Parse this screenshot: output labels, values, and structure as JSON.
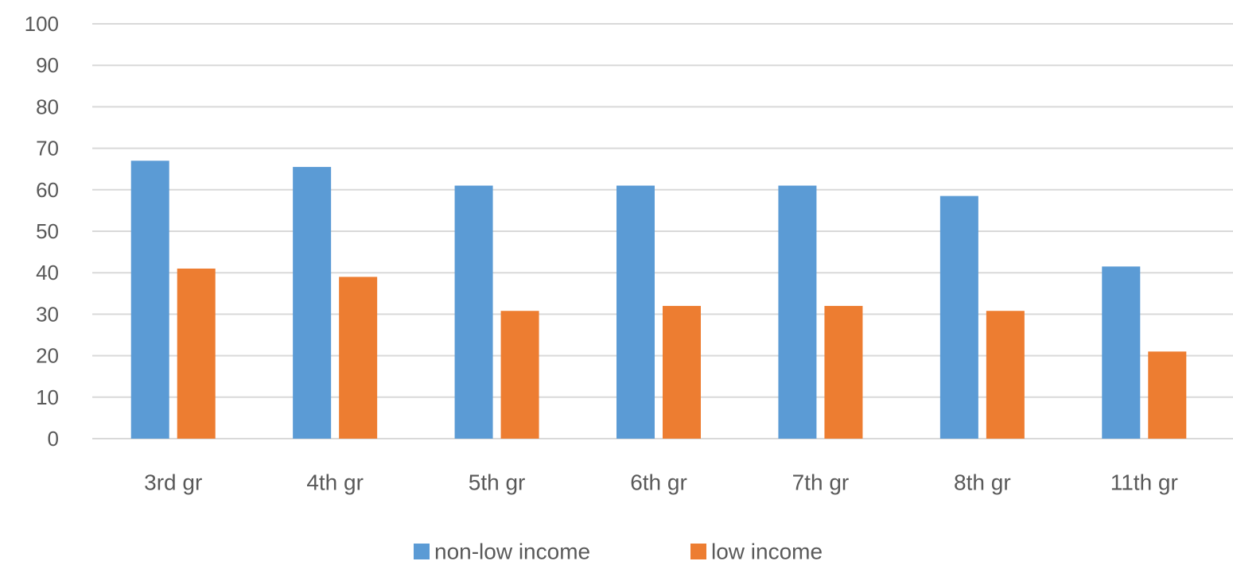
{
  "chart_data": {
    "type": "bar",
    "title": "",
    "xlabel": "",
    "ylabel": "",
    "ylim": [
      0,
      100
    ],
    "yticks": [
      0,
      10,
      20,
      30,
      40,
      50,
      60,
      70,
      80,
      90,
      100
    ],
    "grid": true,
    "legend_position": "bottom",
    "categories": [
      "3rd gr",
      "4th gr",
      "5th gr",
      "6th gr",
      "7th gr",
      "8th gr",
      "11th gr"
    ],
    "series": [
      {
        "name": "non-low income",
        "color": "#5B9BD5",
        "values": [
          67,
          65.5,
          61,
          61,
          61,
          58.5,
          41.5
        ]
      },
      {
        "name": "low income",
        "color": "#ED7D31",
        "values": [
          41,
          39,
          30.8,
          32,
          32,
          30.8,
          21
        ]
      }
    ]
  }
}
